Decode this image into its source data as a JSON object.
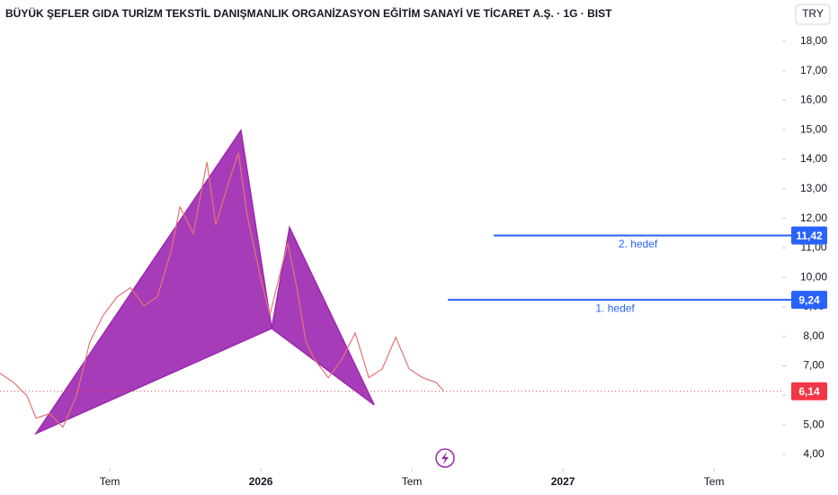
{
  "chart_data": {
    "type": "line",
    "title": "BÜYÜK ŞEFLER GIDA TURİZM TEKSTİL DANIŞMANLIK ORGANİZASYON EĞİTİM SANAYİ VE TİCARET A.Ş. · 1G · BIST",
    "currency": "TRY",
    "color": "#e57373",
    "x": [
      1.64,
      2.18,
      2.71,
      3.07,
      3.61,
      4.14,
      4.68,
      5.21,
      5.75,
      6.29,
      6.82,
      7.36,
      7.89,
      8.43,
      8.79,
      9.32,
      9.86,
      10.21,
      10.75,
      11.11,
      11.46,
      12.0,
      12.36,
      12.71,
      13.07,
      13.43,
      13.79,
      14.14,
      14.68,
      15.21,
      15.75,
      16.29,
      16.82,
      17.36,
      17.89,
      18.43,
      18.96,
      19.25
    ],
    "values": [
      6.75,
      6.44,
      5.99,
      5.23,
      5.38,
      4.92,
      5.99,
      7.82,
      8.73,
      9.34,
      9.65,
      9.04,
      9.34,
      10.87,
      12.39,
      11.48,
      13.91,
      11.78,
      13.3,
      14.22,
      12.09,
      9.95,
      8.73,
      9.95,
      11.17,
      9.65,
      7.82,
      7.21,
      6.6,
      7.21,
      8.12,
      6.6,
      6.9,
      7.97,
      6.9,
      6.6,
      6.44,
      6.17
    ],
    "pattern": {
      "color": "#9c27b0",
      "x": [
        3.07,
        11.21,
        12.43,
        13.14,
        16.5
      ],
      "values": [
        4.71,
        14.98,
        8.27,
        11.69,
        5.68
      ]
    },
    "targets": [
      {
        "label": "1. hedef",
        "value": 9.24,
        "value_label": "9,24",
        "x_start": 19.43,
        "color": "#2962ff"
      },
      {
        "label": "2. hedef",
        "value": 11.42,
        "value_label": "11,42",
        "x_start": 21.25,
        "color": "#2962ff"
      }
    ],
    "last_price": {
      "value": 6.14,
      "label": "6,14",
      "color": "#f23645"
    },
    "xlim": [
      1.64,
      32.71
    ],
    "ylim": [
      3.54,
      19.4
    ],
    "xticks": [
      {
        "value": 6,
        "label": "Tem"
      },
      {
        "value": 12,
        "label": "2026"
      },
      {
        "value": 18,
        "label": "Tem"
      },
      {
        "value": 24,
        "label": "2027"
      },
      {
        "value": 30,
        "label": "Tem"
      }
    ],
    "yticks": [
      {
        "value": 4,
        "label": "4,00"
      },
      {
        "value": 5,
        "label": "5,00"
      },
      {
        "value": 6,
        "label": "6,00"
      },
      {
        "value": 7,
        "label": "7,00"
      },
      {
        "value": 8,
        "label": "8,00"
      },
      {
        "value": 9,
        "label": "9,00"
      },
      {
        "value": 10,
        "label": "10,00"
      },
      {
        "value": 11,
        "label": "11,00"
      },
      {
        "value": 12,
        "label": "12,00"
      },
      {
        "value": 13,
        "label": "13,00"
      },
      {
        "value": 14,
        "label": "14,00"
      },
      {
        "value": 15,
        "label": "15,00"
      },
      {
        "value": 16,
        "label": "16,00"
      },
      {
        "value": 17,
        "label": "17,00"
      },
      {
        "value": 18,
        "label": "18,00"
      }
    ],
    "grid": false
  }
}
